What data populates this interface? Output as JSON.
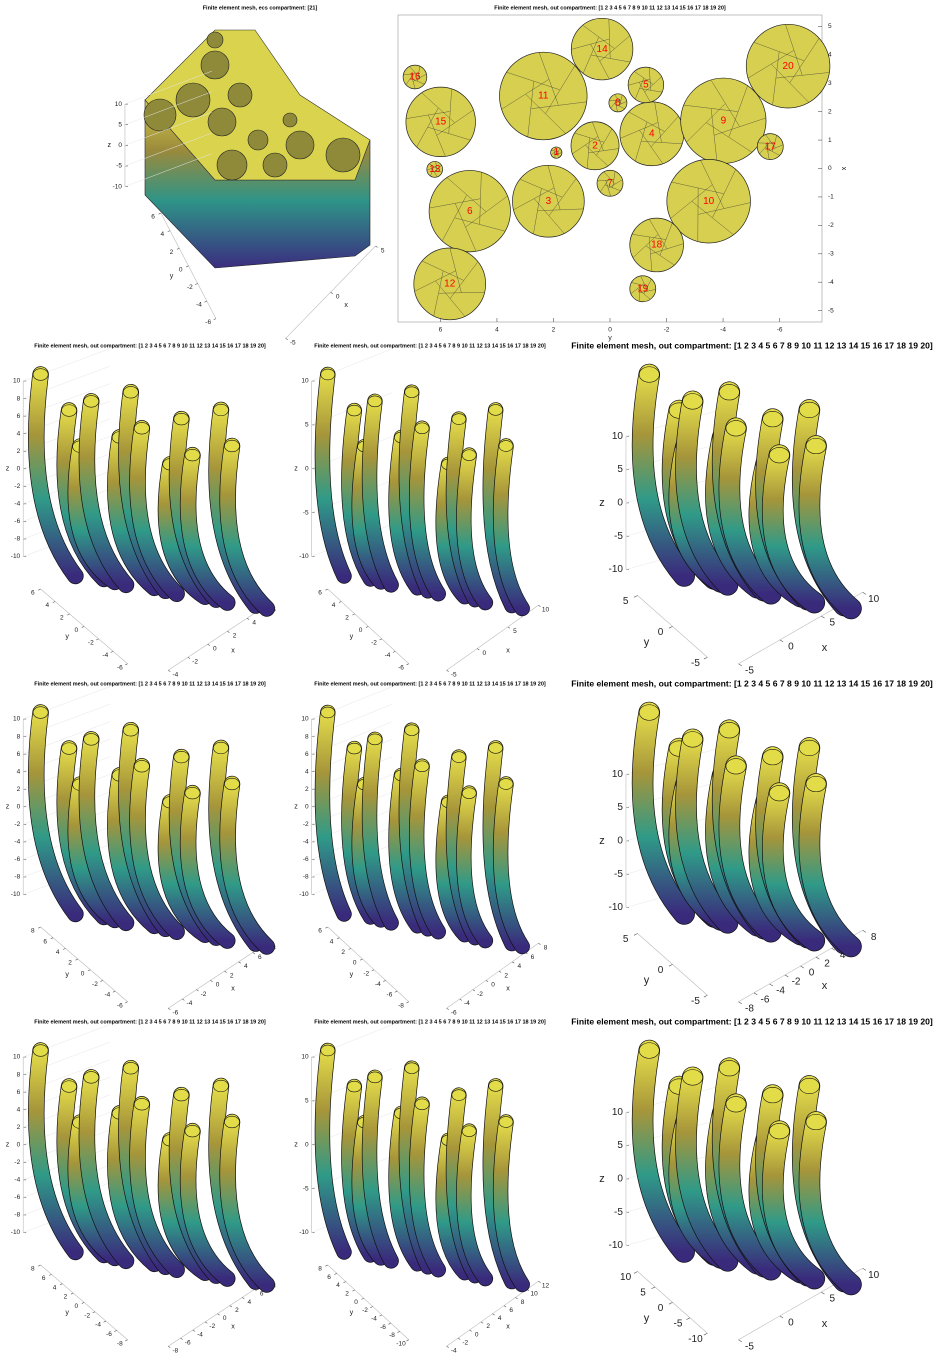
{
  "chart_data": [
    {
      "type": "mesh3d",
      "title": "Finite element mesh, ecs compartment: [21]",
      "xlabel": "x",
      "ylabel": "y",
      "zlabel": "z",
      "zlim": [
        -10,
        10
      ],
      "zticks": [
        10,
        5,
        0,
        -5,
        -10
      ],
      "ylim": [
        -6,
        6
      ],
      "yticks": [
        6,
        4,
        2,
        0,
        -2,
        -4,
        -6
      ],
      "xlim": [
        -5,
        5
      ],
      "xticks": [
        -5,
        0,
        5
      ]
    },
    {
      "type": "bubble",
      "title": "Finite element mesh, out compartment: [1 2 3 4 5 6 7 8 9 10 11 12 13 14 15 16 17 18 19 20]",
      "xlabel": "y",
      "ylabel": "x",
      "xlim": [
        -7.5,
        7.5
      ],
      "x_reversed": true,
      "xticks": [
        6,
        4,
        2,
        0,
        -2,
        -4,
        -6
      ],
      "ylim": [
        -5.4,
        5.4
      ],
      "yticks": [
        5,
        4,
        3,
        2,
        1,
        0,
        -1,
        -2,
        -3,
        -4,
        -5
      ],
      "yaxis_location": "right",
      "color": "#d6cf4f",
      "label_color": "#ff0000",
      "labels": [
        "1",
        "2",
        "3",
        "4",
        "5",
        "6",
        "7",
        "8",
        "9",
        "10",
        "11",
        "12",
        "13",
        "14",
        "15",
        "16",
        "17",
        "18",
        "19",
        "20"
      ],
      "x": [
        1.9,
        0.53,
        2.18,
        -1.48,
        -1.27,
        4.96,
        0,
        -0.28,
        -4.01,
        -3.49,
        2.36,
        5.67,
        6.2,
        0.28,
        5.99,
        6.9,
        -5.67,
        -1.65,
        -1.16,
        -6.3
      ],
      "y": [
        0.56,
        0.8,
        -1.15,
        1.22,
        2.94,
        -1.5,
        -0.52,
        2.31,
        1.68,
        -1.15,
        2.55,
        -4.06,
        -0.03,
        4.2,
        1.64,
        3.22,
        0.77,
        -2.69,
        -4.23,
        3.6
      ],
      "sizes": [
        0.2,
        0.85,
        1.27,
        1.13,
        0.63,
        1.44,
        0.46,
        0.32,
        1.51,
        1.48,
        1.55,
        1.27,
        0.28,
        1.09,
        1.23,
        0.42,
        0.46,
        0.95,
        0.46,
        1.48
      ]
    },
    {
      "type": "mesh3d",
      "title": "Finite element mesh, out compartment: [1 2 3 4 5 6 7 8 9 10 11 12 13 14 15 16 17 18 19 20]",
      "xlabel": "x",
      "ylabel": "y",
      "zlabel": "z",
      "zlim": [
        -10,
        10
      ],
      "zticks": [
        10,
        8,
        6,
        4,
        2,
        0,
        -2,
        -4,
        -6,
        -8,
        -10
      ],
      "ylim": [
        -6,
        6
      ],
      "yticks": [
        6,
        4,
        2,
        0,
        -2,
        -4,
        -6
      ],
      "xlim": [
        -4,
        6
      ],
      "xticks": [
        -4,
        -2,
        0,
        2,
        4,
        6
      ]
    },
    {
      "type": "mesh3d",
      "title": "Finite element mesh, out compartment: [1 2 3 4 5 6 7 8 9 10 11 12 13 14 15 16 17 18 19 20]",
      "xlabel": "x",
      "ylabel": "y",
      "zlabel": "z",
      "zlim": [
        -10,
        10
      ],
      "zticks": [
        10,
        5,
        0,
        -5,
        -10
      ],
      "ylim": [
        -6,
        6
      ],
      "yticks": [
        6,
        4,
        2,
        0,
        -2,
        -4,
        -6
      ],
      "xlim": [
        -5,
        10
      ],
      "xticks": [
        -5,
        0,
        5,
        10
      ]
    },
    {
      "type": "mesh3d",
      "title": "Finite element mesh, out compartment: [1 2 3 4 5 6 7 8 9 10 11 12 13 14 15 16 17 18 19 20]",
      "xlabel": "x",
      "ylabel": "y",
      "zlabel": "z",
      "zlim": [
        -10,
        10
      ],
      "zticks": [
        10,
        5,
        0,
        -5,
        -10
      ],
      "ylim": [
        -5,
        5
      ],
      "yticks": [
        5,
        0,
        -5
      ],
      "xlim": [
        -5,
        10
      ],
      "xticks": [
        -5,
        0,
        5,
        10
      ]
    },
    {
      "type": "mesh3d",
      "title": "Finite element mesh, out compartment: [1 2 3 4 5 6 7 8 9 10 11 12 13 14 15 16 17 18 19 20]",
      "xlabel": "x",
      "ylabel": "y",
      "zlabel": "z",
      "zlim": [
        -10,
        10
      ],
      "zticks": [
        10,
        8,
        6,
        4,
        2,
        0,
        -2,
        -4,
        -6,
        -8,
        -10
      ],
      "ylim": [
        -6,
        8
      ],
      "yticks": [
        8,
        6,
        4,
        2,
        0,
        -2,
        -4,
        -6
      ],
      "xlim": [
        -6,
        8
      ],
      "xticks": [
        -6,
        -4,
        -2,
        0,
        2,
        4,
        6,
        8
      ]
    },
    {
      "type": "mesh3d",
      "title": "Finite element mesh, out compartment: [1 2 3 4 5 6 7 8 9 10 11 12 13 14 15 16 17 18 19 20]",
      "xlabel": "x",
      "ylabel": "y",
      "zlabel": "z",
      "zlim": [
        -10,
        10
      ],
      "zticks": [
        10,
        8,
        6,
        4,
        2,
        0,
        -2,
        -4,
        -6,
        -8,
        -10
      ],
      "ylim": [
        -8,
        6
      ],
      "yticks": [
        6,
        4,
        2,
        0,
        -2,
        -4,
        -6,
        -8
      ],
      "xlim": [
        -6,
        8
      ],
      "xticks": [
        -6,
        -4,
        -2,
        0,
        2,
        4,
        6,
        8
      ]
    },
    {
      "type": "mesh3d",
      "title": "Finite element mesh, out compartment: [1 2 3 4 5 6 7 8 9 10 11 12 13 14 15 16 17 18 19 20]",
      "xlabel": "x",
      "ylabel": "y",
      "zlabel": "z",
      "zlim": [
        -10,
        10
      ],
      "zticks": [
        10,
        5,
        0,
        -5,
        -10
      ],
      "ylim": [
        -5,
        5
      ],
      "yticks": [
        5,
        0,
        -5
      ],
      "xlim": [
        -8,
        8
      ],
      "xticks": [
        -8,
        -6,
        -4,
        -2,
        0,
        2,
        4,
        6,
        8
      ]
    },
    {
      "type": "mesh3d",
      "title": "Finite element mesh, out compartment: [1 2 3 4 5 6 7 8 9 10 11 12 13 14 15 16 17 18 19 20]",
      "xlabel": "x",
      "ylabel": "y",
      "zlabel": "z",
      "zlim": [
        -10,
        10
      ],
      "zticks": [
        10,
        8,
        6,
        4,
        2,
        0,
        -2,
        -4,
        -6,
        -8,
        -10
      ],
      "ylim": [
        -8,
        8
      ],
      "yticks": [
        8,
        6,
        4,
        2,
        0,
        -2,
        -4,
        -6,
        -8
      ],
      "xlim": [
        -8,
        8
      ],
      "xticks": [
        -8,
        -6,
        -4,
        -2,
        0,
        2,
        4,
        6,
        8
      ]
    },
    {
      "type": "mesh3d",
      "title": "Finite element mesh, out compartment: [1 2 3 4 5 6 7 8 9 10 11 12 13 14 15 16 17 18 19 20]",
      "xlabel": "x",
      "ylabel": "y",
      "zlabel": "z",
      "zlim": [
        -10,
        10
      ],
      "zticks": [
        10,
        5,
        0,
        -5,
        -10
      ],
      "ylim": [
        -10,
        8
      ],
      "yticks": [
        8,
        6,
        4,
        2,
        0,
        -2,
        -4,
        -6,
        -8,
        -10
      ],
      "xlim": [
        -4,
        12
      ],
      "xticks": [
        -4,
        -2,
        0,
        2,
        4,
        6,
        8,
        10,
        12
      ]
    },
    {
      "type": "mesh3d",
      "title": "Finite element mesh, out compartment: [1 2 3 4 5 6 7 8 9 10 11 12 13 14 15 16 17 18 19 20]",
      "xlabel": "x",
      "ylabel": "y",
      "zlabel": "z",
      "zlim": [
        -10,
        10
      ],
      "zticks": [
        10,
        5,
        0,
        -5,
        -10
      ],
      "ylim": [
        -10,
        10
      ],
      "yticks": [
        10,
        5,
        0,
        -5,
        -10
      ],
      "xlim": [
        -5,
        10
      ],
      "xticks": [
        -5,
        0,
        5,
        10
      ]
    }
  ]
}
